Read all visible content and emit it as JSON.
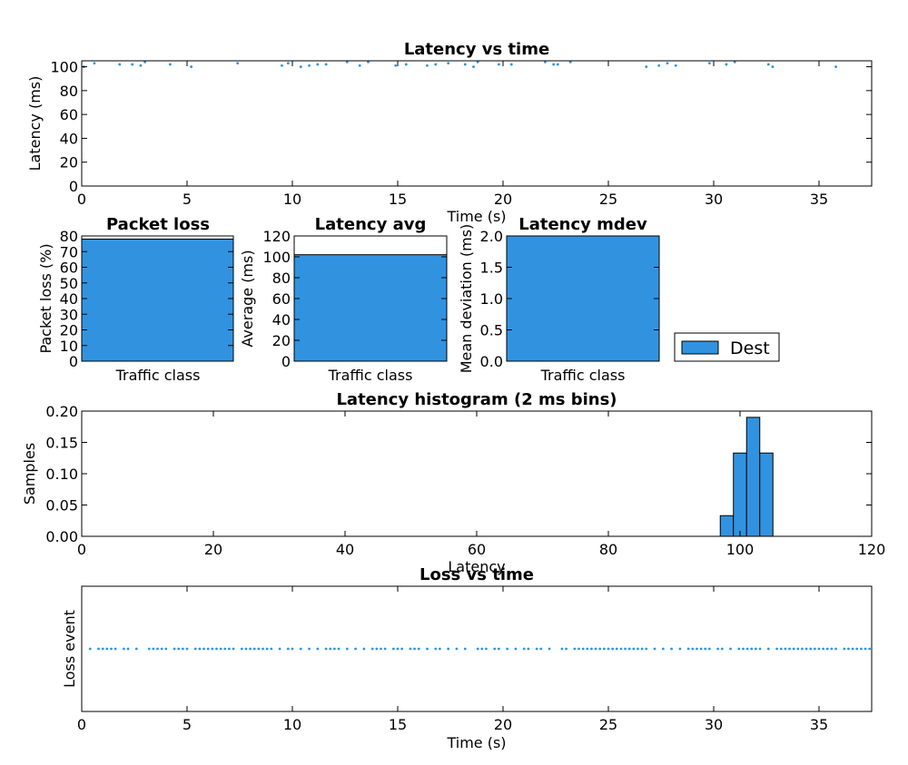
{
  "accent_color": "#3193e0",
  "legend": {
    "label": "Dest"
  },
  "chart_data": [
    {
      "id": "latency_time",
      "type": "scatter",
      "title": "Latency vs time",
      "xlabel": "Time (s)",
      "ylabel": "Latency (ms)",
      "xlim": [
        0,
        37.5
      ],
      "ylim": [
        0,
        105
      ],
      "xticks": [
        0,
        5,
        10,
        15,
        20,
        25,
        30,
        35
      ],
      "yticks": [
        0,
        20,
        40,
        60,
        80,
        100
      ],
      "series": [
        {
          "name": "Dest",
          "x": [
            0.1,
            0.6,
            1.8,
            2.4,
            2.8,
            3.0,
            4.2,
            5.2,
            7.4,
            9.5,
            9.8,
            10.4,
            10.8,
            11.2,
            11.6,
            12.6,
            13.2,
            13.6,
            14.9,
            15.4,
            16.4,
            16.8,
            17.4,
            18.2,
            18.6,
            18.8,
            19.8,
            20.4,
            22.0,
            22.4,
            22.6,
            23.2,
            26.8,
            27.4,
            27.8,
            28.2,
            29.8,
            30.6,
            31.0,
            32.6,
            32.8,
            35.8
          ],
          "y": [
            100,
            103,
            102,
            102,
            101,
            104,
            102,
            100,
            103,
            101,
            103,
            100,
            101,
            102,
            102,
            104,
            101,
            104,
            101,
            102,
            101,
            102,
            103,
            102,
            100,
            104,
            102,
            102,
            104,
            102,
            102,
            104,
            100,
            101,
            103,
            101,
            103,
            102,
            104,
            102,
            100,
            100
          ]
        }
      ]
    },
    {
      "id": "packet_loss",
      "type": "bar",
      "title": "Packet loss",
      "xlabel": "Traffic class",
      "ylabel": "Packet loss (%)",
      "ylim": [
        0,
        80
      ],
      "yticks": [
        0,
        10,
        20,
        30,
        40,
        50,
        60,
        70,
        80
      ],
      "values": [
        78
      ]
    },
    {
      "id": "latency_avg",
      "type": "bar",
      "title": "Latency avg",
      "xlabel": "Traffic class",
      "ylabel": "Average (ms)",
      "ylim": [
        0,
        120
      ],
      "yticks": [
        0,
        20,
        40,
        60,
        80,
        100,
        120
      ],
      "values": [
        102
      ]
    },
    {
      "id": "latency_mdev",
      "type": "bar",
      "title": "Latency mdev",
      "xlabel": "Traffic class",
      "ylabel": "Mean deviation (ms)",
      "ylim": [
        0,
        2.0
      ],
      "yticks": [
        "0.0",
        "0.5",
        "1.0",
        "1.5",
        "2.0"
      ],
      "values": [
        2.0
      ]
    },
    {
      "id": "latency_hist",
      "type": "bar",
      "title": "Latency histogram (2 ms bins)",
      "xlabel": "Latency",
      "ylabel": "Samples",
      "xlim": [
        0,
        120
      ],
      "ylim": [
        0,
        0.2
      ],
      "xticks": [
        0,
        20,
        40,
        60,
        80,
        100,
        120
      ],
      "yticks": [
        "0.00",
        "0.05",
        "0.10",
        "0.15",
        "0.20"
      ],
      "bins": [
        {
          "x0": 97,
          "x1": 99,
          "value": 0.033
        },
        {
          "x0": 99,
          "x1": 101,
          "value": 0.133
        },
        {
          "x0": 101,
          "x1": 103,
          "value": 0.19
        },
        {
          "x0": 103,
          "x1": 105,
          "value": 0.133
        }
      ]
    },
    {
      "id": "loss_time",
      "type": "scatter",
      "title": "Loss vs time",
      "xlabel": "Time (s)",
      "ylabel": "Loss event",
      "xlim": [
        0,
        37.5
      ],
      "xticks": [
        0,
        5,
        10,
        15,
        20,
        25,
        30,
        35
      ],
      "x": [
        0.4,
        0.8,
        1.0,
        1.2,
        1.4,
        1.6,
        2.0,
        2.2,
        2.6,
        3.2,
        3.4,
        3.6,
        3.8,
        4.0,
        4.4,
        4.6,
        4.8,
        5.0,
        5.4,
        5.6,
        5.8,
        6.0,
        6.2,
        6.4,
        6.6,
        6.8,
        7.0,
        7.2,
        7.6,
        7.8,
        8.0,
        8.2,
        8.4,
        8.6,
        8.8,
        9.0,
        9.4,
        9.8,
        10.0,
        10.4,
        10.8,
        11.2,
        11.6,
        11.8,
        12.0,
        12.2,
        12.6,
        13.0,
        13.4,
        13.8,
        14.0,
        14.2,
        14.4,
        14.8,
        15.0,
        15.2,
        15.6,
        15.8,
        16.0,
        16.4,
        16.8,
        17.0,
        17.4,
        17.8,
        18.2,
        18.8,
        19.0,
        19.2,
        19.6,
        19.8,
        20.2,
        20.6,
        21.0,
        21.2,
        21.6,
        21.8,
        22.2,
        22.8,
        23.0,
        23.4,
        23.6,
        23.8,
        24.0,
        24.2,
        24.4,
        24.6,
        24.8,
        25.0,
        25.2,
        25.4,
        25.6,
        25.8,
        26.0,
        26.2,
        26.4,
        26.6,
        26.8,
        27.2,
        27.6,
        28.0,
        28.4,
        28.8,
        29.0,
        29.2,
        29.4,
        29.6,
        29.8,
        30.2,
        30.4,
        30.8,
        31.2,
        31.4,
        31.6,
        31.8,
        32.0,
        32.2,
        32.6,
        33.0,
        33.2,
        33.4,
        33.6,
        33.8,
        34.0,
        34.2,
        34.4,
        34.6,
        34.8,
        35.0,
        35.2,
        35.4,
        35.6,
        35.8,
        36.2,
        36.4,
        36.6,
        36.8,
        37.0,
        37.2,
        37.4
      ]
    }
  ]
}
